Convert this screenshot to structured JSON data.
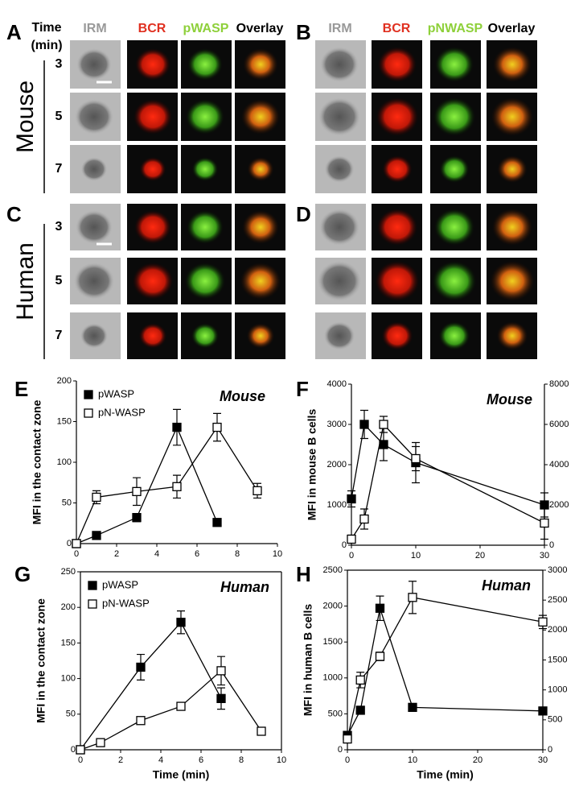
{
  "images": {
    "time_header": [
      "Time",
      "(min)"
    ],
    "panels": [
      {
        "letter": "A",
        "columns": [
          "IRM",
          "BCR",
          "pWASP",
          "Overlay"
        ]
      },
      {
        "letter": "B",
        "columns": [
          "IRM",
          "BCR",
          "pNWASP",
          "Overlay"
        ]
      },
      {
        "letter": "C"
      },
      {
        "letter": "D"
      }
    ],
    "groups": [
      {
        "species": "Mouse",
        "times": [
          3,
          5,
          7
        ]
      },
      {
        "species": "Human",
        "times": [
          3,
          5,
          7
        ]
      }
    ]
  },
  "chart_data": [
    {
      "type": "line",
      "panel_label": "E",
      "annotation": "Mouse",
      "ylabel": "MFI in the contact zone",
      "xlim": [
        0,
        10
      ],
      "xticks": [
        0,
        2,
        4,
        6,
        8,
        10
      ],
      "ylim": [
        0,
        200
      ],
      "yticks": [
        0,
        50,
        100,
        150,
        200
      ],
      "legend": "upper left",
      "series": [
        {
          "name": "pWASP",
          "color": "#000000",
          "x": [
            0,
            1,
            3,
            5,
            7
          ],
          "values": [
            0,
            10,
            32,
            143,
            26
          ],
          "errors": [
            0,
            4,
            5,
            22,
            3
          ]
        },
        {
          "name": "pN-WASP",
          "color": "#ffffff",
          "x": [
            0,
            1,
            3,
            5,
            7,
            9
          ],
          "values": [
            0,
            57,
            64,
            70,
            143,
            65
          ],
          "errors": [
            0,
            8,
            17,
            14,
            17,
            9
          ]
        }
      ]
    },
    {
      "type": "line",
      "panel_label": "F",
      "annotation": "Mouse",
      "ylabel": "MFI in mouse B cells",
      "xlim": [
        0,
        30
      ],
      "xticks": [
        0,
        10,
        20,
        30
      ],
      "ylim": [
        0,
        4000
      ],
      "yticks": [
        0,
        1000,
        2000,
        3000,
        4000
      ],
      "y2lim": [
        0,
        8000
      ],
      "y2ticks": [
        0,
        2000,
        4000,
        6000,
        8000
      ],
      "series": [
        {
          "color": "#000000",
          "x": [
            0,
            2,
            5,
            10,
            30
          ],
          "values": [
            1150,
            3000,
            2500,
            2050,
            1000
          ],
          "errors": [
            200,
            350,
            400,
            500,
            300
          ]
        },
        {
          "color": "#ffffff",
          "axis": "y2",
          "x": [
            0,
            2,
            5,
            10,
            30
          ],
          "values": [
            300,
            1300,
            6000,
            4300,
            1100
          ],
          "errors": [
            200,
            500,
            400,
            600,
            800
          ]
        }
      ]
    },
    {
      "type": "line",
      "panel_label": "G",
      "annotation": "Human",
      "ylabel": "MFI in the contact zone",
      "xlabel": "Time (min)",
      "xlim": [
        0,
        10
      ],
      "xticks": [
        0,
        2,
        4,
        6,
        8,
        10
      ],
      "ylim": [
        0,
        250
      ],
      "yticks": [
        0,
        50,
        100,
        150,
        200,
        250
      ],
      "legend": "upper left",
      "frame": true,
      "series": [
        {
          "name": "pWASP",
          "color": "#000000",
          "x": [
            0,
            3,
            5,
            7
          ],
          "values": [
            0,
            116,
            179,
            72
          ],
          "errors": [
            0,
            18,
            16,
            15
          ]
        },
        {
          "name": "pN-WASP",
          "color": "#ffffff",
          "x": [
            0,
            1,
            3,
            5,
            7,
            9
          ],
          "values": [
            0,
            10,
            41,
            61,
            111,
            26
          ],
          "errors": [
            0,
            3,
            4,
            5,
            20,
            3
          ]
        }
      ]
    },
    {
      "type": "line",
      "panel_label": "H",
      "annotation": "Human",
      "ylabel": "MFI in human B cells",
      "xlabel": "Time (min)",
      "xlim": [
        0,
        30
      ],
      "xticks": [
        0,
        10,
        20,
        30
      ],
      "ylim": [
        0,
        2500
      ],
      "yticks": [
        0,
        500,
        1000,
        1500,
        2000,
        2500
      ],
      "y2lim": [
        0,
        3000
      ],
      "y2ticks": [
        0,
        500,
        1000,
        1500,
        2000,
        2500,
        3000
      ],
      "frame": true,
      "series": [
        {
          "color": "#000000",
          "x": [
            0,
            2,
            5,
            10,
            30
          ],
          "values": [
            200,
            550,
            1970,
            590,
            540
          ],
          "errors": [
            50,
            50,
            170,
            50,
            50
          ]
        },
        {
          "color": "#ffffff",
          "axis": "y2",
          "x": [
            0,
            2,
            5,
            10,
            30
          ],
          "values": [
            180,
            1165,
            1560,
            2545,
            2135
          ],
          "errors": [
            60,
            130,
            70,
            270,
            110
          ]
        }
      ]
    }
  ]
}
